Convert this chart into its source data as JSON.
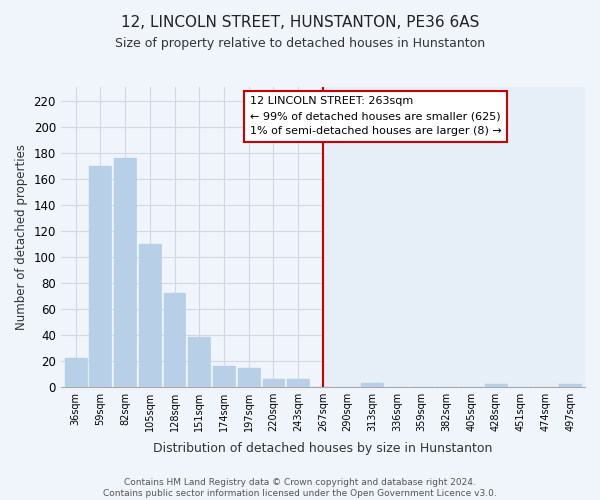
{
  "title": "12, LINCOLN STREET, HUNSTANTON, PE36 6AS",
  "subtitle": "Size of property relative to detached houses in Hunstanton",
  "xlabel": "Distribution of detached houses by size in Hunstanton",
  "ylabel": "Number of detached properties",
  "bin_labels": [
    "36sqm",
    "59sqm",
    "82sqm",
    "105sqm",
    "128sqm",
    "151sqm",
    "174sqm",
    "197sqm",
    "220sqm",
    "243sqm",
    "267sqm",
    "290sqm",
    "313sqm",
    "336sqm",
    "359sqm",
    "382sqm",
    "405sqm",
    "428sqm",
    "451sqm",
    "474sqm",
    "497sqm"
  ],
  "bar_heights": [
    22,
    170,
    176,
    110,
    72,
    38,
    16,
    14,
    6,
    6,
    0,
    0,
    3,
    0,
    0,
    0,
    0,
    2,
    0,
    0,
    2
  ],
  "bar_color_left": "#b8cfe8",
  "bar_color_right": "#c8d8ee",
  "vline_index": 10,
  "vline_color": "#cc0000",
  "annotation_title": "12 LINCOLN STREET: 263sqm",
  "annotation_line1": "← 99% of detached houses are smaller (625)",
  "annotation_line2": "1% of semi-detached houses are larger (8) →",
  "ylim": [
    0,
    230
  ],
  "yticks": [
    0,
    20,
    40,
    60,
    80,
    100,
    120,
    140,
    160,
    180,
    200,
    220
  ],
  "footer_line1": "Contains HM Land Registry data © Crown copyright and database right 2024.",
  "footer_line2": "Contains public sector information licensed under the Open Government Licence v3.0.",
  "bg_color_left": "#f0f4fb",
  "bg_color_right": "#e6eef8",
  "grid_color": "#d0d8e8",
  "vline_x_data": 10.5
}
